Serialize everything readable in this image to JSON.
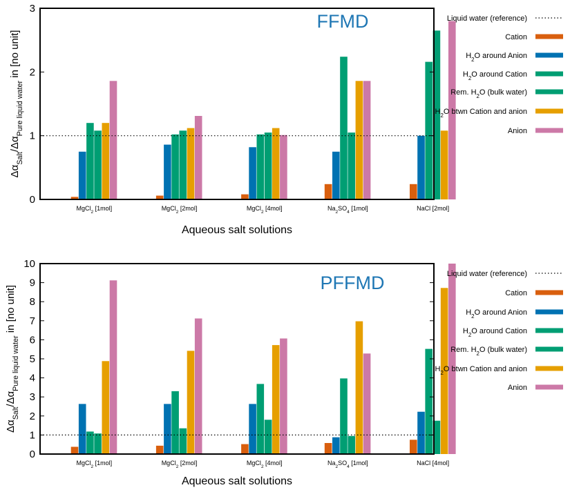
{
  "chart_data": [
    {
      "type": "bar",
      "annotation": "FFMD",
      "annotation_color": "#1f77b4",
      "xlabel": "Aqueous salt solutions",
      "ylabel": "Δα_Salt/Δα_Pure liquid water in [no unit]",
      "ylabel_parts": {
        "a": "Δα",
        "a_sub": "Salt",
        "b": "/Δα",
        "b_sub": "Pure liquid water",
        "c": " in [no unit]"
      },
      "ylim": [
        0,
        3
      ],
      "yticks": [
        "0",
        "1",
        "2",
        "3"
      ],
      "reference_line": {
        "label": "Liquid water (reference)",
        "y": 1
      },
      "categories": [
        {
          "base": "MgCl",
          "sub": "2",
          "rest": " [1mol]"
        },
        {
          "base": "MgCl",
          "sub": "2",
          "rest": " [2mol]"
        },
        {
          "base": "MgCl",
          "sub": "2",
          "rest": " [4mol]"
        },
        {
          "base": "Na",
          "sub": "2",
          "rest": "SO",
          "sub2": "4",
          "rest2": " [1mol]"
        },
        {
          "base": "NaCl",
          "sub": "",
          "rest": " [2mol]"
        }
      ],
      "series": [
        {
          "name": "Cation",
          "legend": {
            "pre": "Cation"
          },
          "color": "#d95f0e",
          "values": [
            0.04,
            0.06,
            0.08,
            0.24,
            0.24
          ]
        },
        {
          "name": "H2O around Anion",
          "legend": {
            "pre": "H",
            "sub": "2",
            "post": "O around Anion"
          },
          "color": "#0072b2",
          "values": [
            0.75,
            0.86,
            0.82,
            0.75,
            1.0
          ]
        },
        {
          "name": "H2O around Cation",
          "legend": {
            "pre": "H",
            "sub": "2",
            "post": "O around Cation"
          },
          "color": "#009e73",
          "values": [
            1.2,
            1.02,
            1.02,
            2.24,
            2.16
          ]
        },
        {
          "name": "Rem. H2O (bulk water)",
          "legend": {
            "pre": "Rem. H",
            "sub": "2",
            "post": "O (bulk water)"
          },
          "color": "#009e73",
          "values": [
            1.08,
            1.08,
            1.05,
            1.05,
            2.65
          ]
        },
        {
          "name": "H2O btwn Cation and anion",
          "legend": {
            "pre": "H",
            "sub": "2",
            "post": "O btwn Cation and anion"
          },
          "color": "#e69f00",
          "values": [
            1.2,
            1.12,
            1.12,
            1.86,
            1.08
          ]
        },
        {
          "name": "Anion",
          "legend": {
            "pre": "Anion"
          },
          "color": "#cc79a7",
          "values": [
            1.86,
            1.31,
            1.01,
            1.86,
            2.8
          ]
        }
      ]
    },
    {
      "type": "bar",
      "annotation": "PFFMD",
      "annotation_color": "#1f77b4",
      "xlabel": "Aqueous salt solutions",
      "ylabel": "Δα_Salt/Δα_Pure liquid water in [no unit]",
      "ylabel_parts": {
        "a": "Δα",
        "a_sub": "Salt",
        "b": "/Δα",
        "b_sub": "Pure liquid water",
        "c": " in [no unit]"
      },
      "ylim": [
        0,
        10
      ],
      "yticks": [
        "0",
        "1",
        "2",
        "3",
        "4",
        "5",
        "6",
        "7",
        "8",
        "9",
        "10"
      ],
      "reference_line": {
        "label": "Liquid water (reference)",
        "y": 1
      },
      "categories": [
        {
          "base": "MgCl",
          "sub": "2",
          "rest": " [1mol]"
        },
        {
          "base": "MgCl",
          "sub": "2",
          "rest": " [2mol]"
        },
        {
          "base": "MgCl",
          "sub": "2",
          "rest": " [4mol]"
        },
        {
          "base": "Na",
          "sub": "2",
          "rest": "SO",
          "sub2": "4",
          "rest2": " [1mol]"
        },
        {
          "base": "NaCl",
          "sub": "",
          "rest": " [4mol]"
        }
      ],
      "series": [
        {
          "name": "Cation",
          "legend": {
            "pre": "Cation"
          },
          "color": "#d95f0e",
          "values": [
            0.38,
            0.44,
            0.52,
            0.58,
            0.75
          ]
        },
        {
          "name": "H2O around Anion",
          "legend": {
            "pre": "H",
            "sub": "2",
            "post": "O around Anion"
          },
          "color": "#0072b2",
          "values": [
            2.63,
            2.63,
            2.63,
            0.88,
            2.22
          ]
        },
        {
          "name": "H2O around Cation",
          "legend": {
            "pre": "H",
            "sub": "2",
            "post": "O around Cation"
          },
          "color": "#009e73",
          "values": [
            1.18,
            3.3,
            3.68,
            3.97,
            5.52
          ]
        },
        {
          "name": "Rem. H2O (bulk water)",
          "legend": {
            "pre": "Rem. H",
            "sub": "2",
            "post": "O (bulk water)"
          },
          "color": "#009e73",
          "values": [
            1.08,
            1.35,
            1.8,
            0.95,
            1.75
          ]
        },
        {
          "name": "H2O btwn Cation and anion",
          "legend": {
            "pre": "H",
            "sub": "2",
            "post": "O btwn Cation and anion"
          },
          "color": "#e69f00",
          "values": [
            4.88,
            5.42,
            5.72,
            6.97,
            8.72
          ]
        },
        {
          "name": "Anion",
          "legend": {
            "pre": "Anion"
          },
          "color": "#cc79a7",
          "values": [
            9.12,
            7.12,
            6.07,
            5.28,
            10.0
          ]
        }
      ]
    }
  ]
}
